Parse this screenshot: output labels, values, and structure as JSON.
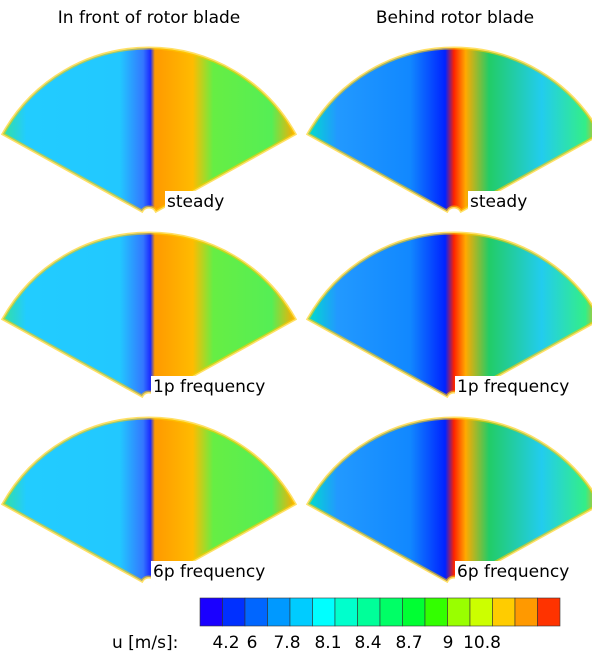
{
  "figure": {
    "columns": [
      "In front of rotor blade",
      "Behind rotor blade"
    ],
    "rows": [
      "steady",
      "1p frequency",
      "6p frequency"
    ],
    "colorbar": {
      "label": "u [m/s]:",
      "ticks": [
        4.2,
        6,
        7.8,
        8.1,
        8.4,
        8.7,
        9,
        10.8
      ],
      "colors": [
        "#1a00ff",
        "#0030ff",
        "#0066ff",
        "#0099ff",
        "#00ccff",
        "#00ffff",
        "#00ffcc",
        "#00ff99",
        "#00ff66",
        "#00ff33",
        "#33ff00",
        "#99ff00",
        "#ccff00",
        "#ffcc00",
        "#ff9900",
        "#ff3300"
      ]
    }
  }
}
